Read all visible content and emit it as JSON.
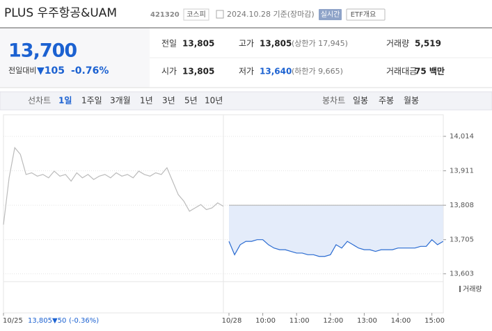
{
  "header": {
    "title": "PLUS 우주항공&UAM",
    "code": "421320",
    "market": "코스피",
    "date": "2024.10.28 기준(장마감)",
    "realtime": "실시간",
    "overview": "ETF개요"
  },
  "quote": {
    "price": "13,700",
    "change_label": "전일대비",
    "change": "▼105",
    "change_rate": "-0.76%"
  },
  "summary": [
    {
      "label": "전일",
      "value": "13,805"
    },
    {
      "label": "고가",
      "value": "13,805",
      "note": "(상한가 17,945)"
    },
    {
      "label": "거래량",
      "value": "5,519"
    },
    {
      "label": "시가",
      "value": "13,805"
    },
    {
      "label": "저가",
      "value": "13,640",
      "note": "(하한가 9,665)"
    },
    {
      "label": "거래대금",
      "value": "75 백만"
    }
  ],
  "tabs": {
    "line_label": "선차트",
    "line_periods": [
      "1일",
      "1주일",
      "3개월",
      "1년",
      "3년",
      "5년",
      "10년"
    ],
    "candle_label": "봉차트",
    "candle_periods": [
      "일봉",
      "주봉",
      "월봉"
    ]
  },
  "chart_data": {
    "type": "line",
    "categories": [
      "10/25",
      null,
      null,
      null,
      null,
      null,
      null,
      null,
      null,
      null,
      null,
      null,
      null,
      null,
      null,
      null,
      null,
      null,
      null,
      null,
      null,
      null,
      null,
      null,
      null,
      null,
      null,
      null,
      null,
      null,
      null,
      null,
      null,
      null,
      null,
      null,
      null,
      null,
      null,
      null,
      "10/28",
      null,
      null,
      null,
      null,
      null,
      "10:00",
      null,
      null,
      null,
      null,
      null,
      "11:00",
      null,
      null,
      null,
      null,
      null,
      "12:00",
      null,
      null,
      null,
      null,
      null,
      "13:00",
      null,
      null,
      null,
      null,
      null,
      "14:00",
      null,
      null,
      null,
      null,
      null,
      "15:00",
      null,
      null,
      null
    ],
    "series": [
      {
        "name": "prev",
        "color": "#bbbbbb",
        "values": [
          13750,
          13890,
          13980,
          13960,
          13900,
          13905,
          13895,
          13900,
          13890,
          13910,
          13895,
          13900,
          13880,
          13905,
          13890,
          13900,
          13885,
          13895,
          13900,
          13890,
          13905,
          13895,
          13900,
          13890,
          13910,
          13900,
          13895,
          13905,
          13900,
          13920,
          13880,
          13840,
          13820,
          13790,
          13800,
          13810,
          13795,
          13800,
          13815,
          13805,
          null,
          null,
          null,
          null,
          null,
          null,
          null,
          null,
          null,
          null,
          null,
          null,
          null,
          null,
          null,
          null,
          null,
          null,
          null,
          null,
          null,
          null,
          null,
          null,
          null,
          null,
          null,
          null,
          null,
          null,
          null,
          null,
          null,
          null,
          null,
          null,
          null,
          null,
          null,
          null
        ]
      },
      {
        "name": "today",
        "color": "#2a6bd1",
        "values": [
          null,
          null,
          null,
          null,
          null,
          null,
          null,
          null,
          null,
          null,
          null,
          null,
          null,
          null,
          null,
          null,
          null,
          null,
          null,
          null,
          null,
          null,
          null,
          null,
          null,
          null,
          null,
          null,
          null,
          null,
          null,
          null,
          null,
          null,
          null,
          null,
          null,
          null,
          null,
          null,
          13700,
          13660,
          13690,
          13700,
          13700,
          13705,
          13705,
          13690,
          13680,
          13675,
          13675,
          13670,
          13665,
          13665,
          13660,
          13660,
          13655,
          13655,
          13660,
          13690,
          13680,
          13700,
          13690,
          13680,
          13675,
          13675,
          13670,
          13675,
          13675,
          13675,
          13680,
          13680,
          13680,
          13680,
          13685,
          13685,
          13705,
          13690,
          13700,
          null
        ]
      }
    ],
    "ylim": [
      13590,
      14037
    ],
    "yticks": [
      {
        "value": 14014,
        "label": "14,014"
      },
      {
        "value": 13911,
        "label": "13,911"
      },
      {
        "value": 13808,
        "label": "13,808"
      },
      {
        "value": 13705,
        "label": "13,705"
      },
      {
        "value": 13603,
        "label": "13,603"
      }
    ],
    "grid": true,
    "volume_label": "거래량",
    "prev_summary": {
      "close": "13,805",
      "change": "▼50",
      "rate": "(-0.36%)"
    }
  }
}
